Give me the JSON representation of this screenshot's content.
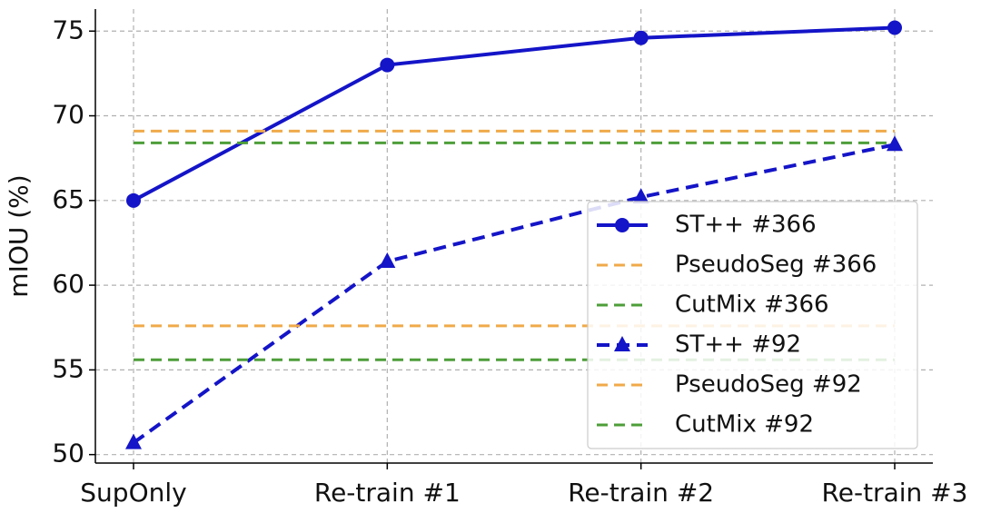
{
  "chart_data": {
    "type": "line",
    "y_label": "mIOU (%)",
    "categories": [
      "SupOnly",
      "Re-train #1",
      "Re-train #2",
      "Re-train #3"
    ],
    "ylim": [
      49.5,
      76.3
    ],
    "yticks": [
      50,
      55,
      60,
      65,
      70,
      75
    ],
    "grid": true,
    "legend": "lower right",
    "series": [
      {
        "name": "ST++ #366",
        "color": "#1414c8",
        "style": "solid",
        "marker": "circle",
        "values": [
          65.0,
          73.0,
          74.6,
          75.2
        ]
      },
      {
        "name": "PseudoSeg #366",
        "color": "#f0aa4a",
        "style": "dashed",
        "value": 69.1
      },
      {
        "name": "CutMix #366",
        "color": "#4e9e3a",
        "style": "dashed",
        "value": 68.4
      },
      {
        "name": "ST++ #92",
        "color": "#1414c8",
        "style": "dashed",
        "marker": "triangle",
        "values": [
          50.7,
          61.4,
          65.2,
          68.3
        ]
      },
      {
        "name": "PseudoSeg #92",
        "color": "#f0aa4a",
        "style": "dashed",
        "value": 57.6
      },
      {
        "name": "CutMix #92",
        "color": "#4e9e3a",
        "style": "dashed",
        "value": 55.6
      }
    ]
  }
}
